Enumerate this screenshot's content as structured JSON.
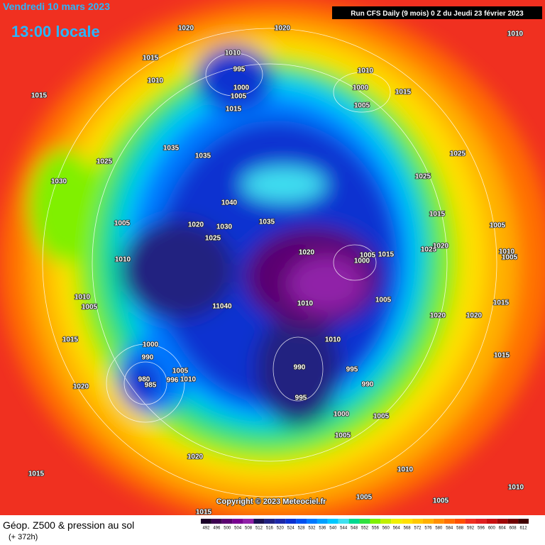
{
  "header": {
    "date": "Vendredi 10 mars 2023",
    "time": "13:00 locale",
    "run": "Run CFS Daily (9 mois) 0 Z du Jeudi 23 février 2023"
  },
  "copyright": "Copyright © 2023 Meteociel.fr",
  "footer": {
    "title": "Géop. Z500 & pression au sol",
    "lead": "(+ 372h)"
  },
  "legend": {
    "ticks": [
      492,
      496,
      500,
      504,
      508,
      512,
      516,
      520,
      524,
      528,
      532,
      536,
      540,
      544,
      548,
      552,
      556,
      560,
      564,
      568,
      572,
      576,
      580,
      584,
      588,
      592,
      596,
      600,
      604,
      608,
      612
    ],
    "colors": [
      "#1a0028",
      "#3c0050",
      "#5a0070",
      "#780090",
      "#9020a8",
      "#1a1050",
      "#202080",
      "#1c28a8",
      "#0a30d0",
      "#0050f0",
      "#0078ff",
      "#00a0ff",
      "#00c8ff",
      "#40e0f0",
      "#00d890",
      "#30e040",
      "#80f000",
      "#c0f000",
      "#f0f000",
      "#ffe000",
      "#ffc800",
      "#ffb000",
      "#ff9000",
      "#ff7000",
      "#ff5000",
      "#f03020",
      "#e02020",
      "#c81010",
      "#a00808",
      "#700000",
      "#400000"
    ]
  },
  "isobar_labels": [
    1020,
    1020,
    1010,
    1015,
    1010,
    995,
    1010,
    1010,
    1015,
    1000,
    1005,
    1000,
    1015,
    1015,
    1005,
    1035,
    1035,
    1025,
    1025,
    1030,
    1025,
    1040,
    1035,
    1015,
    1005,
    1020,
    1030,
    1005,
    1025,
    1020,
    1005,
    1015,
    1025,
    1020,
    1010,
    1005,
    1010,
    1000,
    1010,
    1005,
    1015,
    1005,
    11040,
    1010,
    1020,
    1020,
    1015,
    1010,
    1000,
    990,
    1015,
    1005,
    990,
    995,
    980,
    996,
    1010,
    985,
    990,
    1020,
    995,
    1000,
    1005,
    1005,
    1020,
    1010,
    1015,
    1010,
    1005,
    1005,
    1015
  ]
}
